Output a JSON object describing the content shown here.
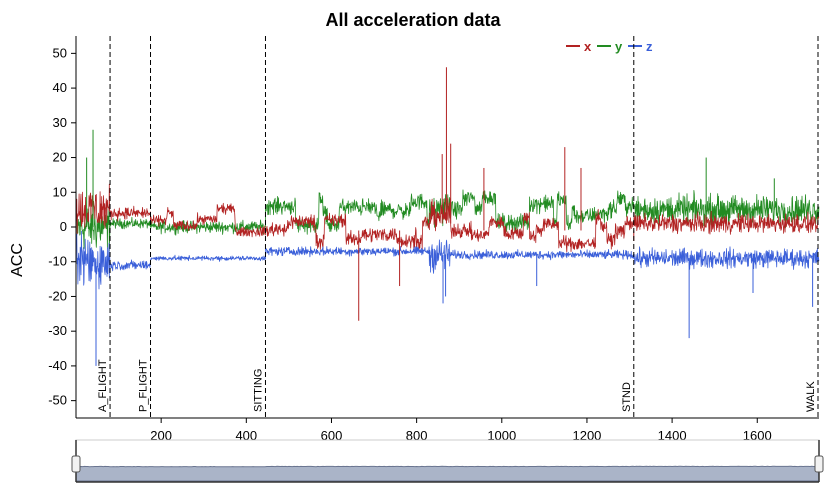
{
  "chart_data": {
    "type": "line",
    "title": "All acceleration data",
    "xlabel": "",
    "ylabel": "ACC",
    "xlim": [
      0,
      1745
    ],
    "ylim": [
      -55,
      55
    ],
    "x_ticks": [
      200,
      400,
      600,
      800,
      1000,
      1200,
      1400,
      1600
    ],
    "y_ticks": [
      50,
      40,
      30,
      20,
      10,
      0,
      -10,
      -20,
      -30,
      -40,
      -50
    ],
    "legend_position": "top-right",
    "series": [
      {
        "name": "x",
        "color": "#b22222"
      },
      {
        "name": "y",
        "color": "#228b22"
      },
      {
        "name": "z",
        "color": "#3a5fd9"
      }
    ],
    "segments": [
      {
        "x0": 0,
        "x1": 80,
        "x": [
          0,
          3,
          12,
          41
        ],
        "y": [
          5,
          0,
          -10,
          28
        ],
        "noise": [
          10,
          10,
          11
        ]
      },
      {
        "x0": 80,
        "x1": 175,
        "x": [
          0,
          3,
          4,
          45
        ],
        "y": [
          4,
          1,
          -11,
          5
        ],
        "noise": [
          2.5,
          2,
          2
        ]
      },
      {
        "x0": 175,
        "x1": 445,
        "x": [
          0,
          3,
          2,
          30
        ],
        "y": [
          2,
          0,
          -9,
          5
        ],
        "noise": [
          2,
          2.5,
          1
        ]
      },
      {
        "x0": 445,
        "x1": 830,
        "x": [
          0,
          3,
          4,
          65
        ],
        "y": [
          -1,
          4,
          -7,
          6
        ],
        "noise": [
          3,
          3.5,
          1.8
        ]
      },
      {
        "x0": 830,
        "x1": 880,
        "x": [
          0,
          3,
          6,
          84
        ],
        "y": [
          1,
          4,
          -8,
          45
        ],
        "noise": [
          6,
          6,
          7
        ]
      },
      {
        "x0": 880,
        "x1": 1310,
        "x": [
          0,
          3,
          2,
          92
        ],
        "y": [
          -1,
          5,
          -8,
          13
        ],
        "noise": [
          3,
          3.5,
          1.8
        ]
      },
      {
        "x0": 1310,
        "x1": 1745,
        "x": [
          0,
          3,
          3,
          73
        ],
        "y": [
          1,
          5,
          -9,
          12
        ],
        "noise": [
          4,
          6,
          4
        ]
      }
    ],
    "spikes": [
      {
        "x": 664,
        "series": "x",
        "y": -27
      },
      {
        "x": 760,
        "series": "x",
        "y": -17
      },
      {
        "x": 860,
        "series": "x",
        "y": 21
      },
      {
        "x": 870,
        "series": "x",
        "y": 46
      },
      {
        "x": 880,
        "series": "x",
        "y": 24
      },
      {
        "x": 958,
        "series": "x",
        "y": 17
      },
      {
        "x": 1148,
        "series": "x",
        "y": 23
      },
      {
        "x": 1186,
        "series": "x",
        "y": 17
      },
      {
        "x": 1310,
        "series": "x",
        "y": -4
      },
      {
        "x": 40,
        "series": "y",
        "y": 28
      },
      {
        "x": 25,
        "series": "y",
        "y": 20
      },
      {
        "x": 1480,
        "series": "y",
        "y": 20
      },
      {
        "x": 1640,
        "series": "y",
        "y": 14
      },
      {
        "x": 862,
        "series": "z",
        "y": -22
      },
      {
        "x": 868,
        "series": "z",
        "y": -20
      },
      {
        "x": 1082,
        "series": "z",
        "y": -17
      },
      {
        "x": 1440,
        "series": "z",
        "y": -32
      },
      {
        "x": 1590,
        "series": "z",
        "y": -19
      },
      {
        "x": 1730,
        "series": "z",
        "y": -23
      },
      {
        "x": 47,
        "series": "z",
        "y": -40
      }
    ],
    "events": [
      {
        "label": "A_FLIGHT",
        "x": 80
      },
      {
        "label": "P_FLIGHT",
        "x": 175
      },
      {
        "label": "SITTING",
        "x": 445
      },
      {
        "label": "STND",
        "x": 1310
      },
      {
        "label": "WALK",
        "x": 1745
      }
    ],
    "navigator": {
      "range": [
        0,
        1745
      ],
      "fill": "#aab4c8",
      "line": "#6a7590"
    }
  }
}
